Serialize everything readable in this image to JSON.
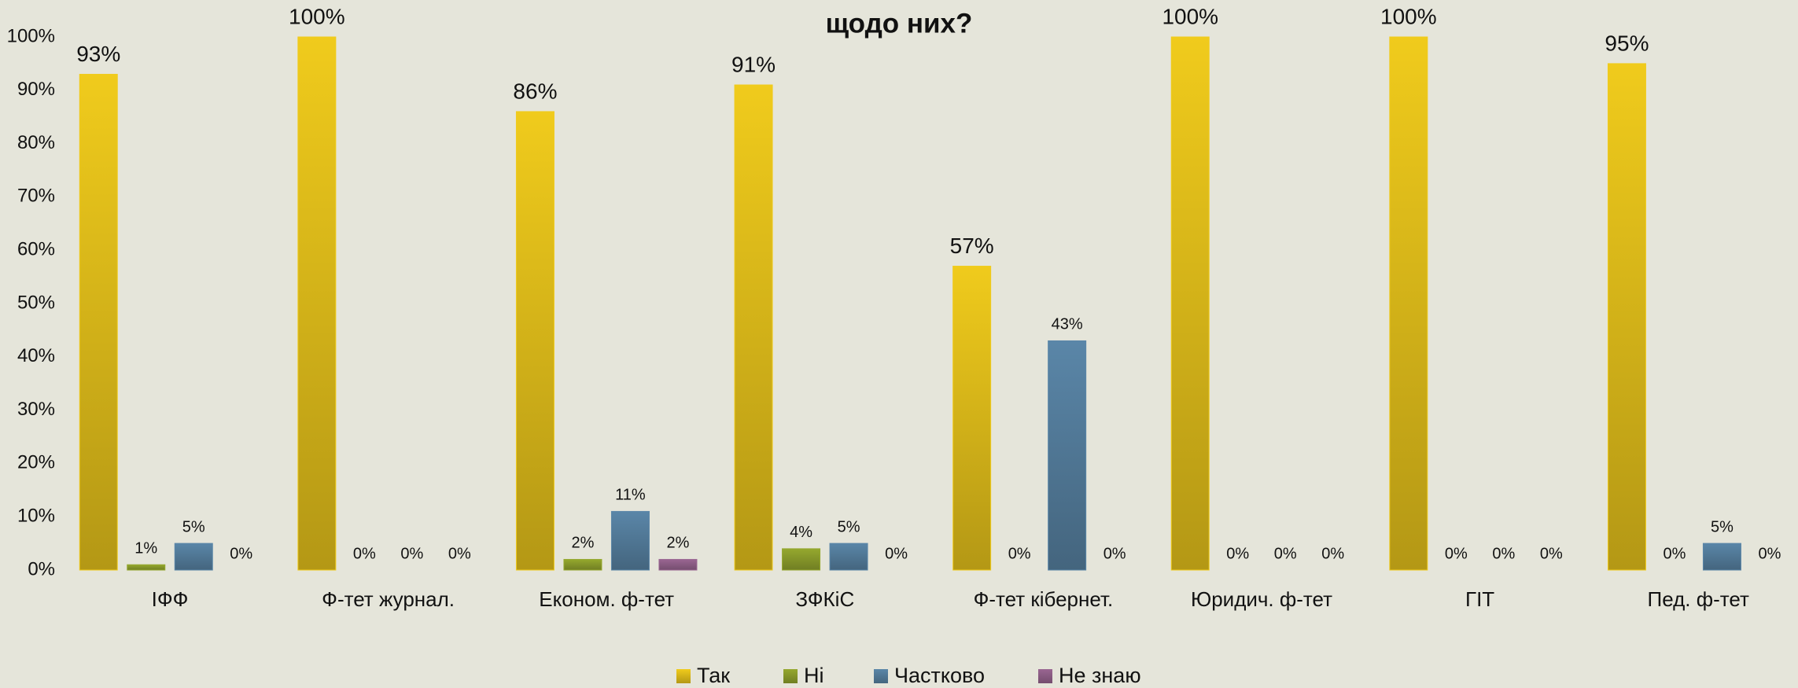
{
  "chart_data": {
    "type": "bar",
    "title": "щодо них?",
    "categories": [
      "ІФФ",
      "Ф-тет журнал.",
      "Економ. ф-тет",
      "ЗФКіС",
      "Ф-тет кібернет.",
      "Юридич. ф-тет",
      "ГІТ",
      "Пед. ф-тет"
    ],
    "series": [
      {
        "name": "Так",
        "color": "#f0cb1c",
        "values": [
          93,
          100,
          86,
          91,
          57,
          100,
          100,
          95
        ],
        "value_labels": [
          "93%",
          "100%",
          "86%",
          "91%",
          "57%",
          "100%",
          "100%",
          "95%"
        ]
      },
      {
        "name": "Ні",
        "color": "#95a82e",
        "values": [
          1,
          0,
          2,
          4,
          0,
          0,
          0,
          0
        ],
        "value_labels": [
          "1%",
          "0%",
          "2%",
          "4%",
          "0%",
          "0%",
          "0%",
          "0%"
        ]
      },
      {
        "name": "Частково",
        "color": "#5a86a8",
        "values": [
          5,
          0,
          11,
          5,
          43,
          0,
          0,
          5
        ],
        "value_labels": [
          "5%",
          "0%",
          "11%",
          "5%",
          "43%",
          "0%",
          "0%",
          "5%"
        ]
      },
      {
        "name": "Не знаю",
        "color": "#9a6692",
        "values": [
          0,
          0,
          2,
          0,
          0,
          0,
          0,
          0
        ],
        "value_labels": [
          "0%",
          "0%",
          "2%",
          "0%",
          "0%",
          "0%",
          "0%",
          "0%"
        ]
      }
    ],
    "ylim": [
      0,
      100
    ],
    "yticks": [
      {
        "value": 0,
        "label": "0%"
      },
      {
        "value": 10,
        "label": "10%"
      },
      {
        "value": 20,
        "label": "20%"
      },
      {
        "value": 30,
        "label": "30%"
      },
      {
        "value": 40,
        "label": "40%"
      },
      {
        "value": 50,
        "label": "50%"
      },
      {
        "value": 60,
        "label": "60%"
      },
      {
        "value": 70,
        "label": "70%"
      },
      {
        "value": 80,
        "label": "80%"
      },
      {
        "value": 90,
        "label": "90%"
      },
      {
        "value": 100,
        "label": "100%"
      }
    ],
    "grid": false,
    "legend": "bottom"
  }
}
